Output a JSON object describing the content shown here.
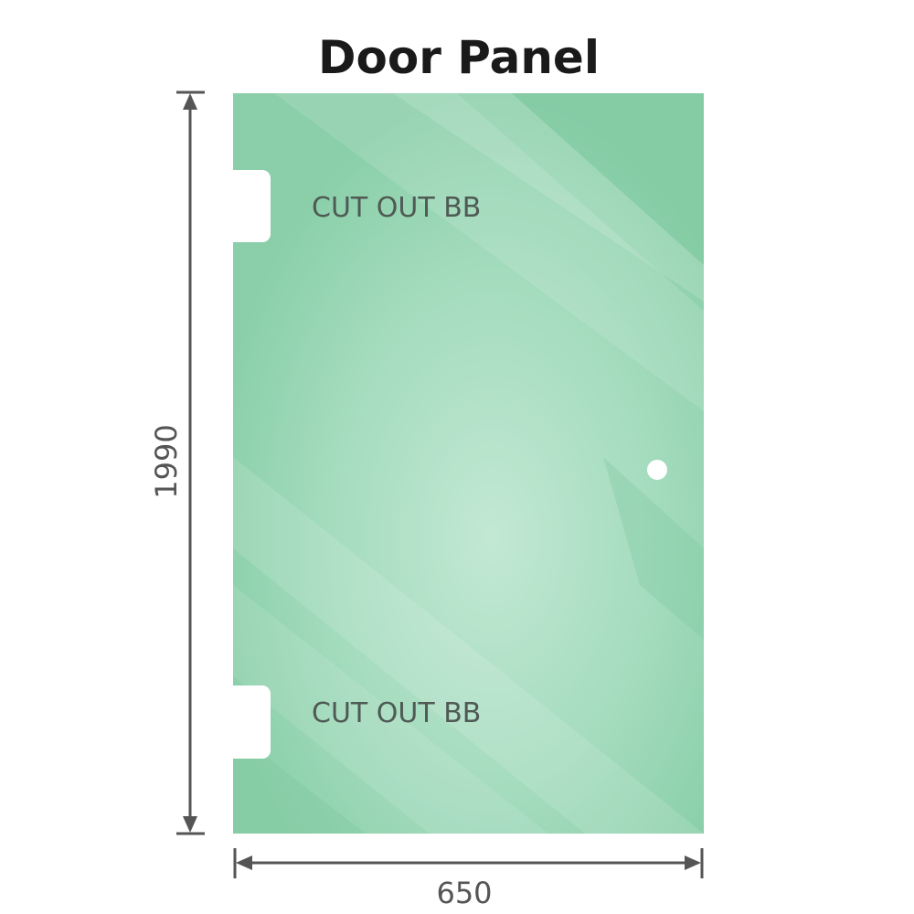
{
  "title": "Door Panel",
  "dimensions": {
    "height": "1990",
    "width": "650"
  },
  "cutouts": [
    {
      "label": "CUT OUT BB"
    },
    {
      "label": "CUT OUT BB"
    }
  ],
  "colors": {
    "glass": "#8ccfac",
    "dimension_line": "#555555",
    "title": "#1a1a1a"
  }
}
